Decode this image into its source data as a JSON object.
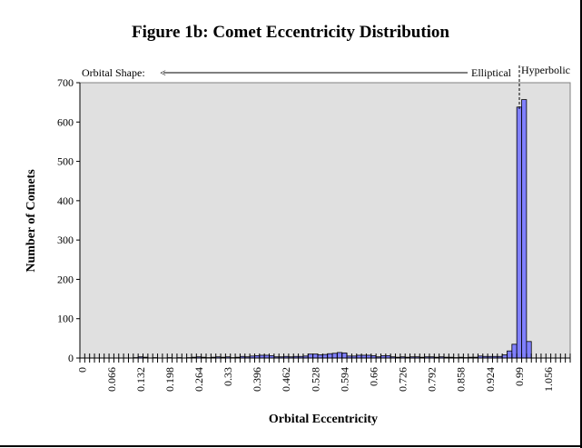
{
  "chart_data": {
    "type": "bar",
    "title": "Figure 1b:  Comet Eccentricity Distribution",
    "xlabel": "Orbital Eccentricity",
    "ylabel": "Number of Comets",
    "ylim": [
      0,
      700
    ],
    "yticks": [
      0,
      100,
      200,
      300,
      400,
      500,
      600,
      700
    ],
    "bin_width": 0.011,
    "bin_count": 101,
    "xtick_labels": [
      "0",
      "0.066",
      "0.132",
      "0.198",
      "0.264",
      "0.33",
      "0.396",
      "0.462",
      "0.528",
      "0.594",
      "0.66",
      "0.726",
      "0.792",
      "0.858",
      "0.924",
      "0.99",
      "1.056"
    ],
    "values": [
      0,
      0,
      0,
      0,
      0,
      0,
      0,
      0,
      0,
      0,
      0,
      1,
      3,
      2,
      0,
      1,
      0,
      0,
      1,
      0,
      1,
      0,
      1,
      2,
      3,
      2,
      1,
      2,
      3,
      2,
      3,
      1,
      2,
      4,
      3,
      5,
      6,
      7,
      7,
      6,
      3,
      3,
      4,
      3,
      4,
      4,
      5,
      10,
      10,
      8,
      9,
      11,
      12,
      14,
      13,
      5,
      5,
      7,
      7,
      7,
      6,
      3,
      6,
      6,
      3,
      2,
      3,
      2,
      3,
      3,
      2,
      3,
      3,
      2,
      3,
      2,
      2,
      1,
      2,
      1,
      2,
      2,
      5,
      4,
      4,
      4,
      4,
      8,
      18,
      35,
      638,
      657,
      42,
      0,
      0,
      0,
      0,
      0,
      0,
      0,
      0
    ],
    "annotations": {
      "orbital_shape": "Orbital Shape:",
      "arrow": "<",
      "elliptical": "Elliptical",
      "hyperbolic": "Hyperbolic"
    },
    "grid": false,
    "bar_color": "#8080ff",
    "plot_bg": "#e0e0e0"
  }
}
